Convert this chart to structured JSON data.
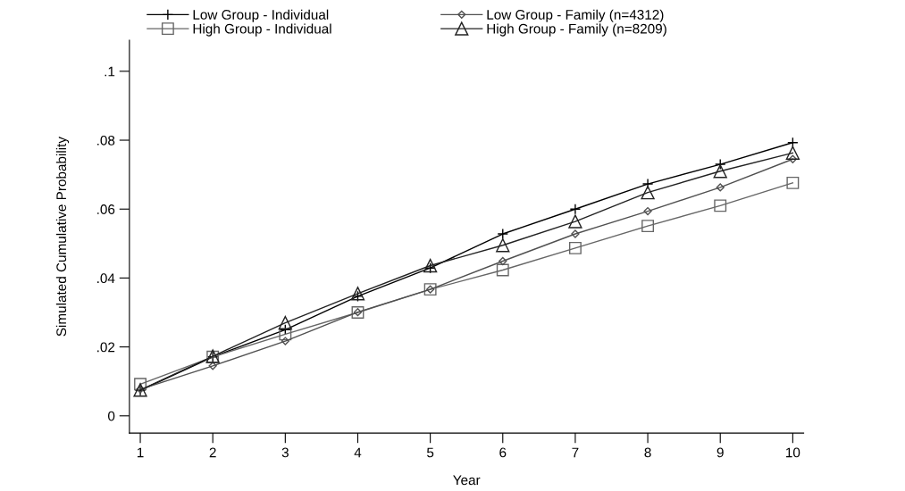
{
  "chart_data": {
    "type": "line",
    "xlabel": "Year",
    "ylabel": "Simulated Cumulative Probability",
    "x": [
      1,
      2,
      3,
      4,
      5,
      6,
      7,
      8,
      9,
      10
    ],
    "series": [
      {
        "name": "Low Group - Individual",
        "color": "#000000",
        "marker": "cross",
        "values": [
          0.0074,
          0.0171,
          0.025,
          0.0347,
          0.0429,
          0.0528,
          0.06,
          0.0673,
          0.073,
          0.0793
        ]
      },
      {
        "name": "High Group - Individual",
        "color": "#666666",
        "marker": "square",
        "values": [
          0.0092,
          0.0171,
          0.0237,
          0.03,
          0.0367,
          0.0423,
          0.0487,
          0.0551,
          0.061,
          0.0676
        ]
      },
      {
        "name": "Low Group - Family (n=4312)",
        "color": "#505050",
        "marker": "diamond",
        "values": [
          0.0077,
          0.0145,
          0.0217,
          0.0301,
          0.0367,
          0.0449,
          0.0528,
          0.0594,
          0.0663,
          0.0745
        ]
      },
      {
        "name": "High Group - Family (n=8209)",
        "color": "#222222",
        "marker": "triangle",
        "values": [
          0.0075,
          0.0173,
          0.027,
          0.0355,
          0.0436,
          0.0495,
          0.0564,
          0.0648,
          0.071,
          0.0763
        ]
      }
    ],
    "xlim": [
      0.85,
      10.15
    ],
    "xticks": [
      1,
      2,
      3,
      4,
      5,
      6,
      7,
      8,
      9,
      10
    ],
    "ylim": [
      -0.005,
      0.109
    ],
    "yticks": [
      {
        "value": 0,
        "label": "0"
      },
      {
        "value": 0.02,
        "label": ".02"
      },
      {
        "value": 0.04,
        "label": ".04"
      },
      {
        "value": 0.06,
        "label": ".06"
      },
      {
        "value": 0.08,
        "label": ".08"
      },
      {
        "value": 0.1,
        "label": ".1"
      }
    ],
    "grid": false,
    "legend": "top",
    "line_style": "solid"
  }
}
